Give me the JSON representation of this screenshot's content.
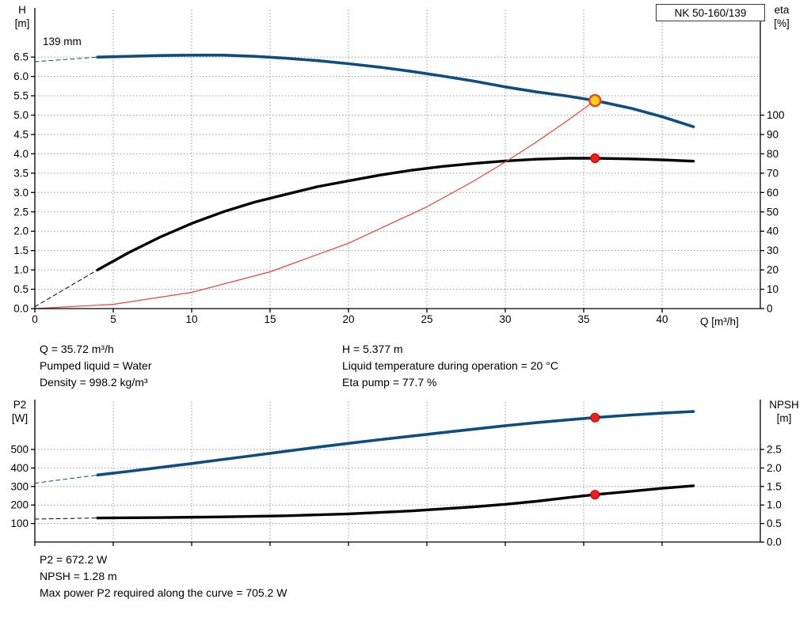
{
  "title_box": "NK 50-160/139",
  "impeller_label": "139 mm",
  "axes_labels": {
    "top_left_1": "H",
    "top_left_2": "[m]",
    "top_right_1": "eta",
    "top_right_2": "[%]",
    "x_label": "Q [m³/h]",
    "bottom_left_1": "P2",
    "bottom_left_2": "[W]",
    "bottom_right_1": "NPSH",
    "bottom_right_2": "[m]"
  },
  "duty_info": {
    "col1": [
      "Q = 35.72 m³/h",
      "Pumped liquid = Water",
      "Density = 998.2 kg/m³"
    ],
    "col2": [
      "H = 5.377 m",
      "Liquid temperature during operation = 20 °C",
      "Eta pump = 77.7 %"
    ]
  },
  "power_info": [
    "P2 = 672.2 W",
    "NPSH = 1.28 m",
    "Max power P2 required along the curve = 705.2 W"
  ],
  "colors": {
    "curve_blue": "#0e4d7e",
    "curve_black": "#000000",
    "system_red": "#e8423c",
    "duty_fill": "#ffd400",
    "marker_red": "#ff1a1a",
    "grid": "#9a9a9a"
  },
  "chart_data": [
    {
      "id": "top",
      "type": "line",
      "name": "QH and efficiency curves",
      "pump_model": "NK 50-160/139",
      "x_axis": {
        "label": "Q [m³/h]",
        "min": 0,
        "max": 46.3,
        "tick_values": [
          0,
          5,
          10,
          15,
          20,
          25,
          30,
          35,
          40
        ],
        "tick_labels": [
          "0",
          "5",
          "10",
          "15",
          "20",
          "25",
          "30",
          "35",
          "40"
        ]
      },
      "left_axis": {
        "label": "H [m]",
        "min": 0,
        "max": 7.8,
        "tick_values": [
          0,
          0.5,
          1,
          1.5,
          2,
          2.5,
          3,
          3.5,
          4,
          4.5,
          5,
          5.5,
          6,
          6.5
        ],
        "tick_labels": [
          "0.0",
          "0.5",
          "1.0",
          "1.5",
          "2.0",
          "2.5",
          "3.0",
          "3.5",
          "4.0",
          "4.5",
          "5.0",
          "5.5",
          "6.0",
          "6.5"
        ]
      },
      "right_axis": {
        "label": "eta [%]",
        "min": 0,
        "max": 155,
        "tick_values": [
          0,
          10,
          20,
          30,
          40,
          50,
          60,
          70,
          80,
          90,
          100
        ],
        "tick_labels": [
          "0",
          "10",
          "20",
          "30",
          "40",
          "50",
          "60",
          "70",
          "80",
          "90",
          "100"
        ]
      },
      "series": [
        {
          "name": "qh-curve-139mm",
          "axis": "left",
          "color": "#0e4d7e",
          "width": 3.6,
          "points": [
            [
              4,
              6.5
            ],
            [
              6,
              6.52
            ],
            [
              8,
              6.54
            ],
            [
              10,
              6.55
            ],
            [
              12,
              6.55
            ],
            [
              14,
              6.52
            ],
            [
              16,
              6.47
            ],
            [
              18,
              6.41
            ],
            [
              20,
              6.33
            ],
            [
              22,
              6.24
            ],
            [
              24,
              6.13
            ],
            [
              26,
              6.01
            ],
            [
              28,
              5.88
            ],
            [
              30,
              5.73
            ],
            [
              32,
              5.6
            ],
            [
              34,
              5.49
            ],
            [
              35.72,
              5.377
            ],
            [
              38,
              5.18
            ],
            [
              40,
              4.96
            ],
            [
              42,
              4.7
            ]
          ]
        },
        {
          "name": "qh-curve-dashed-extension",
          "axis": "left",
          "color": "#0e4d7e",
          "width": 1,
          "dash": "5 4",
          "points": [
            [
              0,
              6.38
            ],
            [
              4,
              6.5
            ]
          ]
        },
        {
          "name": "efficiency-curve",
          "axis": "right",
          "color": "#000000",
          "width": 3.4,
          "points": [
            [
              4,
              20
            ],
            [
              6,
              29
            ],
            [
              8,
              37
            ],
            [
              10,
              44
            ],
            [
              12,
              50
            ],
            [
              14,
              55
            ],
            [
              16,
              59
            ],
            [
              18,
              63
            ],
            [
              20,
              66
            ],
            [
              22,
              69
            ],
            [
              24,
              71.5
            ],
            [
              26,
              73.5
            ],
            [
              28,
              75
            ],
            [
              30,
              76.3
            ],
            [
              32,
              77.2
            ],
            [
              34,
              77.7
            ],
            [
              35.72,
              77.7
            ],
            [
              38,
              77.4
            ],
            [
              40,
              76.9
            ],
            [
              42,
              76.2
            ]
          ]
        },
        {
          "name": "efficiency-curve-dashed-extension",
          "axis": "right",
          "color": "#000000",
          "width": 1,
          "dash": "5 4",
          "points": [
            [
              0,
              1
            ],
            [
              4,
              20
            ]
          ]
        },
        {
          "name": "system-curve",
          "axis": "left",
          "color": "#e8423c",
          "width": 1.2,
          "points": [
            [
              0,
              0
            ],
            [
              5,
              0.11
            ],
            [
              10,
              0.42
            ],
            [
              15,
              0.95
            ],
            [
              20,
              1.69
            ],
            [
              25,
              2.63
            ],
            [
              28,
              3.3
            ],
            [
              30,
              3.79
            ],
            [
              32,
              4.31
            ],
            [
              34,
              4.87
            ],
            [
              35.72,
              5.377
            ]
          ]
        }
      ],
      "markers": [
        {
          "name": "duty-point",
          "axis": "left",
          "q": 35.72,
          "value": 5.377,
          "r": 7,
          "fill": "#ffd400",
          "stroke": "#e8423c",
          "stroke_width": 2.5
        },
        {
          "name": "efficiency-duty-point",
          "axis": "right",
          "q": 35.72,
          "value": 77.7,
          "r": 5.5,
          "fill": "#ff1a1a",
          "stroke": "#b00000",
          "stroke_width": 1
        }
      ]
    },
    {
      "id": "bottom",
      "type": "line",
      "name": "Power and NPSH curves",
      "x_axis": {
        "label": "",
        "min": 0,
        "max": 46.3,
        "tick_values": [
          0,
          5,
          10,
          15,
          20,
          25,
          30,
          35,
          40
        ],
        "tick_labels": []
      },
      "left_axis": {
        "label": "P2 [W]",
        "min": 0,
        "max": 770,
        "tick_values": [
          100,
          200,
          300,
          400,
          500
        ],
        "tick_labels": [
          "100",
          "200",
          "300",
          "400",
          "500"
        ]
      },
      "right_axis": {
        "label": "NPSH [m]",
        "min": 0,
        "max": 3.85,
        "tick_values": [
          0,
          0.5,
          1,
          1.5,
          2,
          2.5
        ],
        "tick_labels": [
          "0.0",
          "0.5",
          "1.0",
          "1.5",
          "2.0",
          "2.5"
        ]
      },
      "series": [
        {
          "name": "p2-curve",
          "axis": "left",
          "color": "#0e4d7e",
          "width": 3.6,
          "points": [
            [
              4,
              362
            ],
            [
              6,
              382
            ],
            [
              8,
              403
            ],
            [
              10,
              424
            ],
            [
              12,
              446
            ],
            [
              14,
              468
            ],
            [
              16,
              490
            ],
            [
              18,
              512
            ],
            [
              20,
              533
            ],
            [
              22,
              553
            ],
            [
              24,
              572
            ],
            [
              26,
              591
            ],
            [
              28,
              610
            ],
            [
              30,
              628
            ],
            [
              32,
              645
            ],
            [
              34,
              660
            ],
            [
              35.72,
              672.2
            ],
            [
              38,
              686
            ],
            [
              40,
              696
            ],
            [
              42,
              705.2
            ]
          ]
        },
        {
          "name": "p2-curve-dashed-extension",
          "axis": "left",
          "color": "#0e4d7e",
          "width": 1,
          "dash": "5 4",
          "points": [
            [
              0,
              318
            ],
            [
              4,
              362
            ]
          ]
        },
        {
          "name": "npsh-curve",
          "axis": "right",
          "color": "#000000",
          "width": 3.4,
          "points": [
            [
              4,
              0.65
            ],
            [
              8,
              0.66
            ],
            [
              12,
              0.68
            ],
            [
              16,
              0.71
            ],
            [
              20,
              0.76
            ],
            [
              24,
              0.84
            ],
            [
              28,
              0.95
            ],
            [
              30,
              1.02
            ],
            [
              32,
              1.1
            ],
            [
              34,
              1.2
            ],
            [
              35.72,
              1.28
            ],
            [
              38,
              1.37
            ],
            [
              40,
              1.45
            ],
            [
              42,
              1.52
            ]
          ]
        },
        {
          "name": "npsh-curve-dashed-extension",
          "axis": "right",
          "color": "#000000",
          "width": 1,
          "dash": "5 4",
          "points": [
            [
              0,
              0.62
            ],
            [
              4,
              0.65
            ]
          ]
        }
      ],
      "markers": [
        {
          "name": "p2-duty-point",
          "axis": "left",
          "q": 35.72,
          "value": 672.2,
          "r": 5.5,
          "fill": "#ff1a1a",
          "stroke": "#b00000",
          "stroke_width": 1
        },
        {
          "name": "npsh-duty-point",
          "axis": "right",
          "q": 35.72,
          "value": 1.28,
          "r": 5.5,
          "fill": "#ff1a1a",
          "stroke": "#b00000",
          "stroke_width": 1
        }
      ]
    }
  ]
}
